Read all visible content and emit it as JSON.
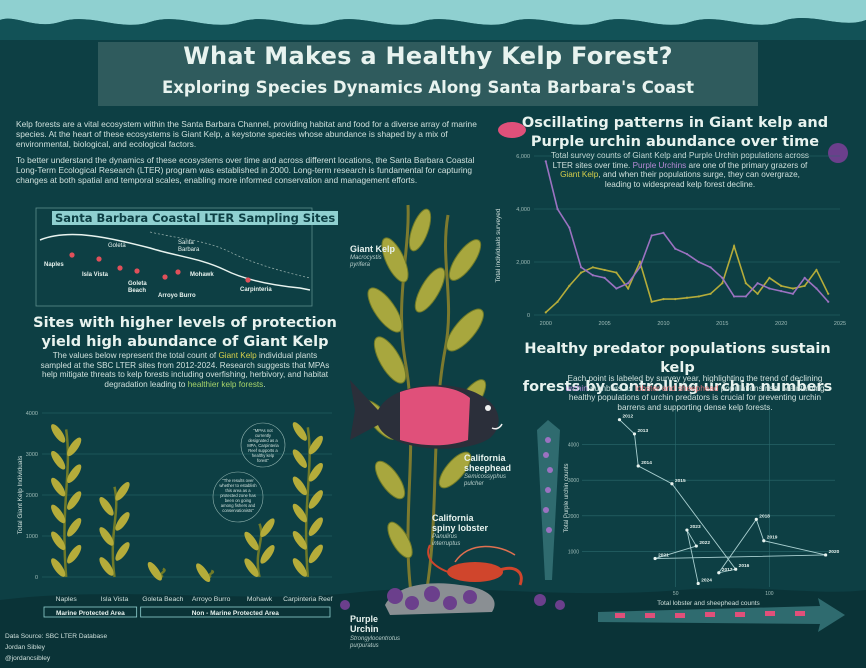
{
  "header": {
    "title": "What Makes a Healthy Kelp Forest?",
    "subtitle": "Exploring Species Dynamics Along Santa Barbara's Coast"
  },
  "intro": {
    "p1": "Kelp forests are a vital ecosystem within the Santa Barbara Channel, providing habitat and food for a diverse array of marine species. At the heart of these ecosystems is Giant Kelp, a keystone species whose abundance is shaped by a mix of environmental, biological, and ecological factors.",
    "p2": "To better understand the dynamics of these ecosystems over time and across different locations, the Santa Barbara Coastal Long-Term Ecological Research (LTER) program was established in 2000. Long-term research is fundamental for capturing changes at both spatial and temporal scales, enabling more informed conservation and management efforts."
  },
  "map": {
    "title": "Santa Barbara Coastal LTER Sampling Sites",
    "place_labels": [
      "Goleta",
      "Santa Barbara"
    ],
    "sites": [
      "Naples",
      "Isla Vista",
      "Goleta Beach",
      "Mohawk",
      "Arroyo Burro",
      "Carpinteria"
    ]
  },
  "protection": {
    "title_line1": "Sites with higher levels of protection",
    "title_line2": "yield high abundance of Giant Kelp",
    "desc_parts": [
      "The values below represent the total count of ",
      "Giant Kelp",
      " individual plants sampled at the SBC LTER sites from 2012-2024.  Research suggests that MPAs help mitigate threats to kelp forests including overfishing, herbivory, and habitat degradation leading to ",
      "healthier kelp forests",
      "."
    ],
    "note1": "\"MPAs not currently designated as a MPA, Carpinteria Reef supports a healthy kelp forest\"",
    "note2": "\"The results over whether to establish this area as a protected zone has been on going among fishers and conservationists\"",
    "group_labels": [
      "Marine Protected Area",
      "Non - Marine Protected Area"
    ]
  },
  "species": {
    "kelp": {
      "name": "Giant Kelp",
      "sci": "Macrocystis pyrifera"
    },
    "sheephead": {
      "name_l1": "California",
      "name_l2": "sheephead",
      "sci_l1": "Semicossyphus",
      "sci_l2": "pulcher"
    },
    "lobster": {
      "name_l1": "California",
      "name_l2": "spiny lobster",
      "sci_l1": "Panulirus",
      "sci_l2": "interruptus"
    },
    "urchin": {
      "name_l1": "Purple",
      "name_l2": "Urchin",
      "sci_l1": "Strongylocentrotus",
      "sci_l2": "purpuratus"
    }
  },
  "oscillating": {
    "title_line1": "Oscillating patterns in Giant kelp and",
    "title_line2": "Purple urchin abundance over time",
    "desc_parts": [
      "Total survey counts of Giant Kelp and Purple Urchin populations across LTER sites over time. ",
      "Purple Urchins",
      " are one of the primary grazers of ",
      "Giant Kelp",
      ", and when their populations surge, they can overgraze, leading to widespread kelp forest decline."
    ]
  },
  "predator": {
    "title_line1": "Healthy predator populations sustain kelp",
    "title_line2": "forests by controlling urchin numbers",
    "desc_parts": [
      "Each point is labeled by survey year, highlighting the trend of declining ",
      "urchin",
      " numbers as ",
      "lobster and sheephead",
      " populations rise. Maintaining healthy populations of urchin predators is crucial for preventing urchin barrens and supporting dense kelp forests."
    ]
  },
  "credits": {
    "source": "Data Source: SBC LTER Database",
    "author": "Jordan Sibley",
    "handle": "@jordancsibley"
  },
  "colors": {
    "background": "#0d3f44",
    "kelp": "#b5ac3a",
    "urchin": "#9b72c1",
    "predator": "#e07478",
    "scatter": "#a9cfd0"
  },
  "chart_data": [
    {
      "type": "bar",
      "categories": [
        "Naples",
        "Isla Vista",
        "Goleta Beach",
        "Arroyo Burro",
        "Mohawk",
        "Carpinteria Reef"
      ],
      "values": [
        3600,
        2200,
        200,
        150,
        1300,
        3650
      ],
      "ylabel": "Total Giant Kelp Individuals",
      "ylim": [
        0,
        4000
      ],
      "yticks": [
        0,
        1000,
        2000,
        3000,
        4000
      ],
      "ytick_labels": [
        "0",
        "1000",
        "2000",
        "3000",
        "4000"
      ],
      "grid": true
    },
    {
      "type": "line",
      "x": [
        2000,
        2001,
        2002,
        2003,
        2004,
        2005,
        2006,
        2007,
        2008,
        2009,
        2010,
        2011,
        2012,
        2013,
        2014,
        2015,
        2016,
        2017,
        2018,
        2019,
        2020,
        2021,
        2022,
        2023,
        2024
      ],
      "series": [
        {
          "name": "Giant Kelp",
          "values": [
            100,
            500,
            1100,
            1600,
            1800,
            1700,
            1600,
            1000,
            2000,
            500,
            600,
            600,
            650,
            700,
            800,
            1200,
            2600,
            1200,
            800,
            1400,
            1100,
            1000,
            1100,
            1700,
            800
          ]
        },
        {
          "name": "Purple Urchin",
          "values": [
            5800,
            4000,
            3300,
            1800,
            1500,
            1400,
            1000,
            1200,
            1800,
            3000,
            3100,
            2500,
            2300,
            2000,
            1800,
            1400,
            700,
            700,
            1200,
            1000,
            900,
            800,
            1400,
            1000,
            500
          ]
        }
      ],
      "ylabel": "Total individuals surveyed",
      "xlim": [
        1999,
        2025
      ],
      "ylim": [
        0,
        6000
      ],
      "xticks": [
        2000,
        2005,
        2010,
        2015,
        2020,
        2025
      ],
      "xtick_labels": [
        "2000",
        "2005",
        "2010",
        "2015",
        "2020",
        "2025"
      ],
      "yticks": [
        0,
        2000,
        4000,
        6000
      ],
      "ytick_labels": [
        "0",
        "2,000",
        "4,000",
        "6,000"
      ],
      "grid": true
    },
    {
      "type": "scatter",
      "points": [
        {
          "label": "2012",
          "x": 20,
          "y": 4700
        },
        {
          "label": "2013",
          "x": 28,
          "y": 4300
        },
        {
          "label": "2014",
          "x": 30,
          "y": 3400
        },
        {
          "label": "2015",
          "x": 48,
          "y": 2900
        },
        {
          "label": "2016",
          "x": 82,
          "y": 500
        },
        {
          "label": "2017",
          "x": 73,
          "y": 400
        },
        {
          "label": "2018",
          "x": 93,
          "y": 1900
        },
        {
          "label": "2019",
          "x": 97,
          "y": 1300
        },
        {
          "label": "2020",
          "x": 130,
          "y": 900
        },
        {
          "label": "2021",
          "x": 39,
          "y": 800
        },
        {
          "label": "2022",
          "x": 61,
          "y": 1150
        },
        {
          "label": "2023",
          "x": 56,
          "y": 1600
        },
        {
          "label": "2024",
          "x": 62,
          "y": 100
        }
      ],
      "xlabel": "Total lobster and sheephead counts",
      "ylabel": "Total Purple urchin counts",
      "xlim": [
        0,
        135
      ],
      "ylim": [
        0,
        5000
      ],
      "xticks": [
        50,
        100
      ],
      "xtick_labels": [
        "50",
        "100"
      ],
      "yticks": [
        1000,
        2000,
        3000,
        4000
      ],
      "ytick_labels": [
        "1000",
        "2000",
        "3000",
        "4000"
      ],
      "grid": true
    }
  ]
}
